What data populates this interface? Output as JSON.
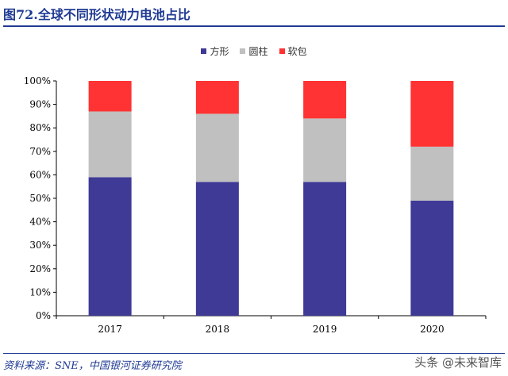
{
  "title": "图72.全球不同形状动力电池占比",
  "source": "资料来源：SNE，中国银河证券研究院",
  "watermark": "头条 @未来智库",
  "chart_data": {
    "type": "bar",
    "stacked": true,
    "categories": [
      "2017",
      "2018",
      "2019",
      "2020"
    ],
    "series": [
      {
        "name": "方形",
        "color": "#3f3a96",
        "values": [
          59,
          57,
          57,
          49
        ]
      },
      {
        "name": "圆柱",
        "color": "#c0c0c0",
        "values": [
          28,
          29,
          27,
          23
        ]
      },
      {
        "name": "软包",
        "color": "#ff3333",
        "values": [
          13,
          14,
          16,
          28
        ]
      }
    ],
    "yticks": [
      "0%",
      "10%",
      "20%",
      "30%",
      "40%",
      "50%",
      "60%",
      "70%",
      "80%",
      "90%",
      "100%"
    ],
    "ylim": [
      0,
      100
    ],
    "legend_position": "top-center",
    "grid": false
  }
}
